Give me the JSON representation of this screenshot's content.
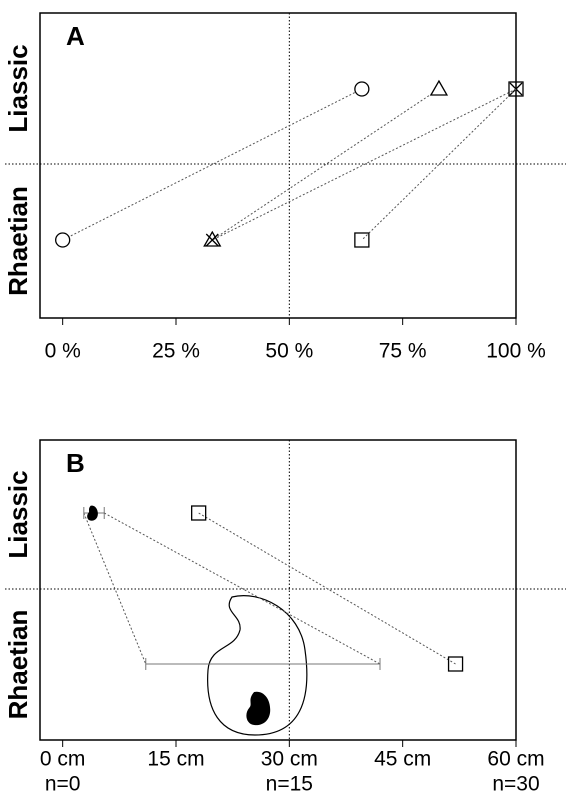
{
  "chart_data": [
    {
      "type": "scatter",
      "panel": "A",
      "categories": [
        "Liassic",
        "Rhaetian"
      ],
      "xlim": [
        -5,
        100
      ],
      "xticks": [
        {
          "value": 0,
          "label": "0 %"
        },
        {
          "value": 25,
          "label": "25 %"
        },
        {
          "value": 50,
          "label": "50 %"
        },
        {
          "value": 75,
          "label": "75 %"
        },
        {
          "value": 100,
          "label": "100 %"
        }
      ],
      "ref_lines": [
        50
      ],
      "series": [
        {
          "marker": "circle",
          "color": "#000000",
          "values": [
            66,
            0
          ]
        },
        {
          "marker": "triangle",
          "color": "#000000",
          "values": [
            83,
            33
          ]
        },
        {
          "marker": "cross",
          "color": "#000000",
          "values": [
            100,
            33
          ]
        },
        {
          "marker": "square",
          "color": "#000000",
          "values": [
            100,
            66
          ]
        }
      ]
    },
    {
      "type": "scatter",
      "panel": "B",
      "categories": [
        "Liassic",
        "Rhaetian"
      ],
      "xlim": [
        -3,
        60
      ],
      "xticks": [
        {
          "value": 0,
          "label": "0 cm"
        },
        {
          "value": 15,
          "label": "15 cm"
        },
        {
          "value": 30,
          "label": "30 cm"
        },
        {
          "value": 45,
          "label": "45 cm"
        },
        {
          "value": 60,
          "label": "60 cm"
        }
      ],
      "nticks": [
        {
          "value": 0,
          "label": "n=0"
        },
        {
          "value": 30,
          "label": "n=15"
        },
        {
          "value": 60,
          "label": "n=30"
        }
      ],
      "ref_lines": [
        30,
        60
      ],
      "series": [
        {
          "marker": "blob",
          "color": "#000000",
          "values": [
            4,
            26
          ],
          "xerr_low": [
            2.8,
            11
          ],
          "xerr_high": [
            5.5,
            42
          ]
        },
        {
          "marker": "square",
          "color": "#000000",
          "values": [
            18,
            52
          ]
        }
      ]
    }
  ]
}
